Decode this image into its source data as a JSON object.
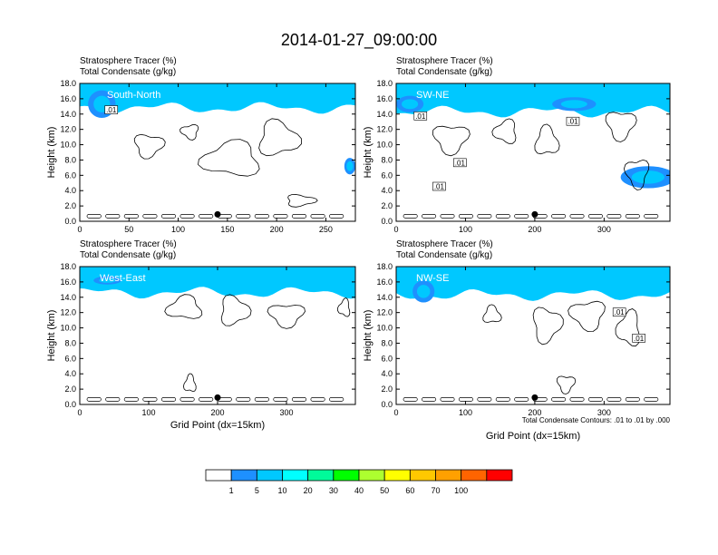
{
  "title": "2014-01-27_09:00:00",
  "panel_subtitle_line1": "Stratosphere Tracer   (%)",
  "panel_subtitle_line2": "Total Condensate   (g/kg)",
  "contour_note": "Total Condensate Contours: .01 to .01 by .000",
  "x_axis_title": "Grid Point (dx=15km)",
  "colorbar": {
    "colors": [
      "#ffffff",
      "#1e90ff",
      "#00c8ff",
      "#00ffff",
      "#00fa9a",
      "#00ff00",
      "#adff2f",
      "#ffff00",
      "#ffc800",
      "#ffa000",
      "#ff6400",
      "#ff0000"
    ],
    "labels": [
      "1",
      "5",
      "10",
      "20",
      "30",
      "40",
      "50",
      "60",
      "70",
      "100"
    ]
  },
  "chart_data": [
    {
      "type": "heatmap",
      "name": "South-North",
      "label": "South-North",
      "title_line1": "Stratosphere Tracer   (%)",
      "title_line2": "Total Condensate   (g/kg)",
      "ylabel": "Height (km)",
      "xlabel": "",
      "xlim": [
        0,
        280
      ],
      "ylim": [
        0,
        18
      ],
      "x_ticks": [
        "0",
        "50",
        "100",
        "150",
        "200",
        "250"
      ],
      "x_tick_values": [
        0,
        50,
        100,
        150,
        200,
        250
      ],
      "y_ticks": [
        "0.0",
        "2.0",
        "4.0",
        "6.0",
        "8.0",
        "10.0",
        "12.0",
        "14.0",
        "16.0",
        "18.0"
      ],
      "tropopause_km": 16.0,
      "marker_x": 140,
      "contour_labels": [
        {
          "text": ".01",
          "x": 32,
          "y": 14.5
        }
      ]
    },
    {
      "type": "heatmap",
      "name": "SW-NE",
      "label": "SW-NE",
      "title_line1": "Stratosphere Tracer   (%)",
      "title_line2": "Total Condensate   (g/kg)",
      "ylabel": "Height (km)",
      "xlabel": "",
      "xlim": [
        0,
        395
      ],
      "ylim": [
        0,
        18
      ],
      "x_ticks": [
        "0",
        "100",
        "200",
        "300"
      ],
      "x_tick_values": [
        0,
        100,
        200,
        300
      ],
      "y_ticks": [
        "0.0",
        "2.0",
        "4.0",
        "6.0",
        "8.0",
        "10.0",
        "12.0",
        "14.0",
        "16.0",
        "18.0"
      ],
      "tropopause_km": 15.5,
      "marker_x": 200,
      "contour_labels": [
        {
          "text": ".01",
          "x": 35,
          "y": 13.7
        },
        {
          "text": ".01",
          "x": 255,
          "y": 13.0
        },
        {
          "text": ".01",
          "x": 92,
          "y": 7.6
        },
        {
          "text": ".01",
          "x": 62,
          "y": 4.5
        }
      ]
    },
    {
      "type": "heatmap",
      "name": "West-East",
      "label": "West-East",
      "title_line1": "Stratosphere Tracer   (%)",
      "title_line2": "Total Condensate   (g/kg)",
      "ylabel": "Height (km)",
      "xlabel": "Grid Point (dx=15km)",
      "xlim": [
        0,
        400
      ],
      "ylim": [
        0,
        18
      ],
      "x_ticks": [
        "0",
        "100",
        "200",
        "300"
      ],
      "x_tick_values": [
        0,
        100,
        200,
        300
      ],
      "y_ticks": [
        "0.0",
        "2.0",
        "4.0",
        "6.0",
        "8.0",
        "10.0",
        "12.0",
        "14.0",
        "16.0",
        "18.0"
      ],
      "tropopause_km": 15.8,
      "marker_x": 200,
      "contour_labels": []
    },
    {
      "type": "heatmap",
      "name": "NW-SE",
      "label": "NW-SE",
      "title_line1": "Stratosphere Tracer   (%)",
      "title_line2": "Total Condensate   (g/kg)",
      "ylabel": "Height (km)",
      "xlabel": "Grid Point (dx=15km)",
      "xlim": [
        0,
        395
      ],
      "ylim": [
        0,
        18
      ],
      "x_ticks": [
        "0",
        "100",
        "200",
        "300"
      ],
      "x_tick_values": [
        0,
        100,
        200,
        300
      ],
      "y_ticks": [
        "0.0",
        "2.0",
        "4.0",
        "6.0",
        "8.0",
        "10.0",
        "12.0",
        "14.0",
        "16.0",
        "18.0"
      ],
      "tropopause_km": 15.5,
      "marker_x": 200,
      "contour_labels": [
        {
          "text": ".01",
          "x": 322,
          "y": 12.0
        },
        {
          "text": ".01",
          "x": 350,
          "y": 8.6
        }
      ]
    }
  ]
}
